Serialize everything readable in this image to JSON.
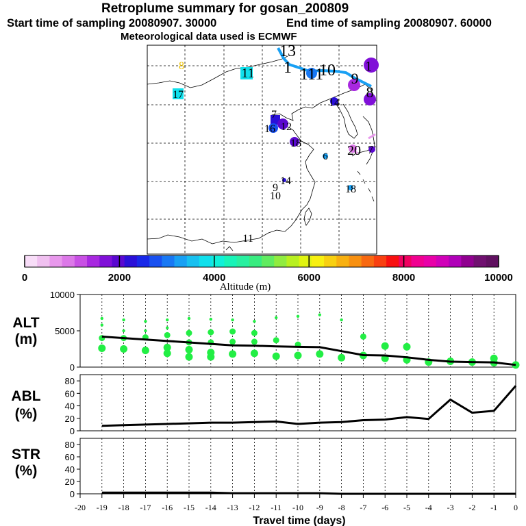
{
  "header": {
    "title": "Retroplume summary for gosan_200809",
    "start_label": "Start time of sampling 20080907. 30000",
    "end_label": "End time of sampling 20080907. 60000",
    "met_label": "Meteorological data used is ECMWF"
  },
  "colorbar": {
    "ticks": [
      "0",
      "2000",
      "4000",
      "6000",
      "8000",
      "10000"
    ],
    "label": "Altitude (m)",
    "colors": [
      "#f8ddf8",
      "#f0c0f0",
      "#e898ec",
      "#dc78e8",
      "#c850e4",
      "#a828e0",
      "#8010d8",
      "#5a08d0",
      "#2a10d8",
      "#1828e8",
      "#1850f0",
      "#1878f4",
      "#18a0f4",
      "#18c0f0",
      "#10e0ec",
      "#10f0d8",
      "#18f4b8",
      "#28f0a0",
      "#38ec80",
      "#60ec60",
      "#90ec40",
      "#b8f020",
      "#e0f410",
      "#f8f010",
      "#f8d010",
      "#f8b010",
      "#f89010",
      "#f86810",
      "#f84010",
      "#f81010",
      "#f00060",
      "#f00090",
      "#e800a8",
      "#d000b8",
      "#b000b8",
      "#900090",
      "#701070",
      "#601060"
    ]
  },
  "map": {
    "labels": [
      {
        "text": "8",
        "color": "#ecc000"
      },
      {
        "text": "11",
        "color": "#000"
      },
      {
        "text": "17",
        "color": "#000"
      },
      {
        "text": "13",
        "color": "#000"
      },
      {
        "text": "1",
        "color": "#000"
      },
      {
        "text": "10",
        "color": "#000"
      },
      {
        "text": "111",
        "color": "#000"
      },
      {
        "text": "9",
        "color": "#000"
      },
      {
        "text": "1",
        "color": "#000"
      },
      {
        "text": "8",
        "color": "#000"
      },
      {
        "text": "14",
        "color": "#000"
      },
      {
        "text": "7",
        "color": "#000"
      },
      {
        "text": "16",
        "color": "#000"
      },
      {
        "text": "12",
        "color": "#000"
      },
      {
        "text": "18",
        "color": "#000"
      },
      {
        "text": "6",
        "color": "#000"
      },
      {
        "text": "20",
        "color": "#000"
      },
      {
        "text": "7",
        "color": "#000"
      },
      {
        "text": "14",
        "color": "#000"
      },
      {
        "text": "9",
        "color": "#000"
      },
      {
        "text": "10",
        "color": "#000"
      },
      {
        "text": "18",
        "color": "#000"
      },
      {
        "text": "11",
        "color": "#000"
      }
    ]
  },
  "chart_data": [
    {
      "type": "scatter",
      "panel_label": [
        "ALT",
        "(m)"
      ],
      "ylim": [
        0,
        10000
      ],
      "yticks": [
        "0",
        "5000",
        "10000"
      ],
      "x": [
        -19,
        -18,
        -17,
        -16,
        -15,
        -14,
        -13,
        -12,
        -11,
        -10,
        -9,
        -8,
        -7,
        -6,
        -5,
        -4,
        -3,
        -2,
        -1,
        0
      ],
      "mean_line": [
        4200,
        4000,
        3800,
        3600,
        3400,
        3200,
        3000,
        2950,
        2850,
        2800,
        2750,
        2200,
        1650,
        1600,
        1350,
        1000,
        750,
        700,
        650,
        300
      ],
      "points": [
        [
          -19,
          6700
        ],
        [
          -19,
          5800
        ],
        [
          -19,
          4000
        ],
        [
          -19,
          2600
        ],
        [
          -18,
          6500
        ],
        [
          -18,
          5000
        ],
        [
          -18,
          4000
        ],
        [
          -18,
          2500
        ],
        [
          -17,
          6300
        ],
        [
          -17,
          5000
        ],
        [
          -17,
          4100
        ],
        [
          -17,
          2300
        ],
        [
          -16,
          6500
        ],
        [
          -16,
          5400
        ],
        [
          -16,
          4400
        ],
        [
          -16,
          2700
        ],
        [
          -16,
          1900
        ],
        [
          -15,
          6700
        ],
        [
          -15,
          4700
        ],
        [
          -15,
          3400
        ],
        [
          -15,
          2400
        ],
        [
          -15,
          1400
        ],
        [
          -14,
          6600
        ],
        [
          -14,
          4800
        ],
        [
          -14,
          3400
        ],
        [
          -14,
          2000
        ],
        [
          -14,
          1400
        ],
        [
          -13,
          6500
        ],
        [
          -13,
          4900
        ],
        [
          -13,
          3500
        ],
        [
          -13,
          1800
        ],
        [
          -12,
          6300
        ],
        [
          -12,
          4700
        ],
        [
          -12,
          3500
        ],
        [
          -12,
          1900
        ],
        [
          -11,
          6800
        ],
        [
          -11,
          3700
        ],
        [
          -11,
          1500
        ],
        [
          -10,
          7000
        ],
        [
          -10,
          3100
        ],
        [
          -10,
          1600
        ],
        [
          -9,
          7200
        ],
        [
          -9,
          1800
        ],
        [
          -8,
          6500
        ],
        [
          -8,
          1300
        ],
        [
          -7,
          4200
        ],
        [
          -7,
          1600
        ],
        [
          -6,
          2900
        ],
        [
          -6,
          1200
        ],
        [
          -5,
          2800
        ],
        [
          -5,
          1000
        ],
        [
          -4,
          700
        ],
        [
          -3,
          800
        ],
        [
          -2,
          700
        ],
        [
          -1,
          1200
        ],
        [
          -1,
          600
        ],
        [
          0,
          300
        ]
      ],
      "marker_color": "#22ee44"
    },
    {
      "type": "line",
      "panel_label": [
        "ABL",
        "(%)"
      ],
      "ylim": [
        0,
        90
      ],
      "yticks": [
        "0",
        "20",
        "40",
        "60",
        "80"
      ],
      "x": [
        -19,
        -18,
        -17,
        -16,
        -15,
        -14,
        -13,
        -12,
        -11,
        -10,
        -9,
        -8,
        -7,
        -6,
        -5,
        -4,
        -3,
        -2,
        -1,
        0
      ],
      "values": [
        8,
        9,
        10,
        11,
        12,
        13,
        13,
        14,
        15,
        11,
        13,
        14,
        17,
        18,
        22,
        19,
        50,
        29,
        32,
        72
      ]
    },
    {
      "type": "line",
      "panel_label": [
        "STR",
        "(%)"
      ],
      "ylim": [
        0,
        90
      ],
      "yticks": [
        "0",
        "20",
        "40",
        "60",
        "80"
      ],
      "x": [
        -19,
        -18,
        -17,
        -16,
        -15,
        -14,
        -13,
        -12,
        -11,
        -10,
        -9,
        -8,
        -7,
        -6,
        -5,
        -4,
        -3,
        -2,
        -1,
        0
      ],
      "values": [
        2,
        2,
        2,
        2,
        2,
        2,
        1,
        1,
        1,
        1,
        1,
        0,
        0,
        0,
        0,
        0,
        0,
        0,
        0,
        0
      ]
    }
  ],
  "xaxis": {
    "ticks": [
      "-20",
      "-19",
      "-18",
      "-17",
      "-16",
      "-15",
      "-14",
      "-13",
      "-12",
      "-11",
      "-10",
      "-9",
      "-8",
      "-7",
      "-6",
      "-5",
      "-4",
      "-3",
      "-2",
      "-1",
      "0"
    ],
    "label": "Travel time (days)"
  }
}
